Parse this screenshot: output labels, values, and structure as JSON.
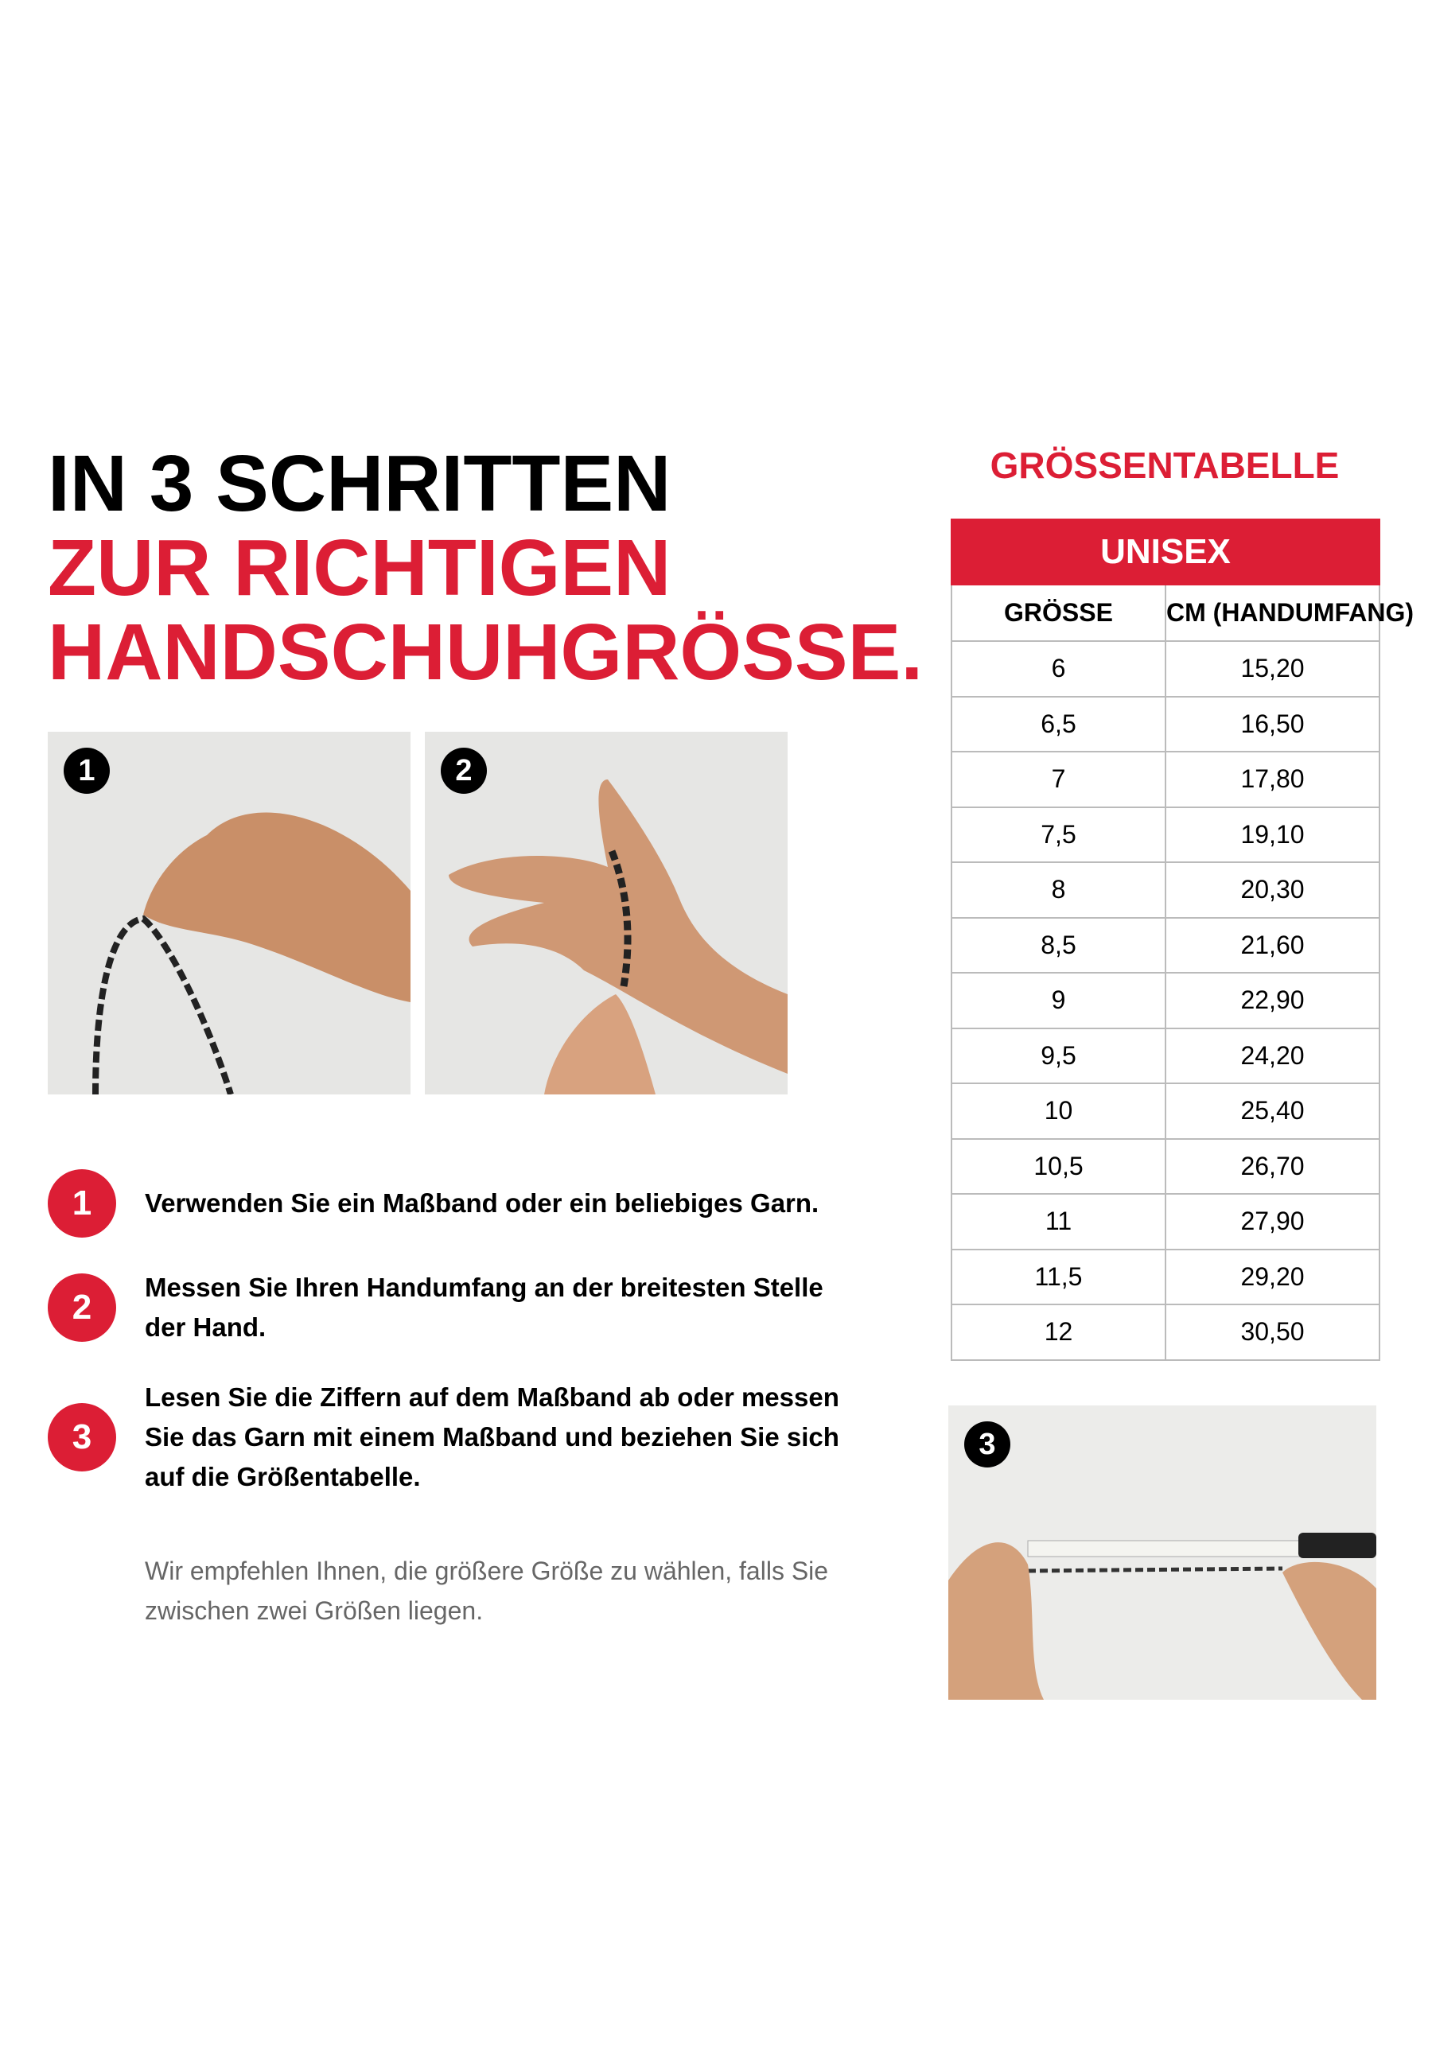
{
  "heading": {
    "line1": "IN 3 SCHRITTEN",
    "line2": "ZUR RICHTIGEN",
    "line3": "HANDSCHUHGRÖSSE."
  },
  "photos": [
    {
      "badge": "1"
    },
    {
      "badge": "2"
    },
    {
      "badge": "3"
    }
  ],
  "steps": [
    {
      "num": "1",
      "text": "Verwenden Sie ein Maßband oder ein beliebiges Garn."
    },
    {
      "num": "2",
      "text": "Messen Sie Ihren Handumfang an der breitesten Stelle der Hand."
    },
    {
      "num": "3",
      "text": "Lesen Sie die Ziffern auf dem Maßband ab oder messen Sie das Garn mit einem Maßband und beziehen Sie sich auf die Größentabelle."
    }
  ],
  "note": "Wir empfehlen Ihnen, die größere Größe zu wählen, falls Sie zwischen zwei Größen liegen.",
  "size_table": {
    "title": "GRÖSSENTABELLE",
    "group": "UNISEX",
    "headers": [
      "GRÖSSE",
      "CM (HANDUMFANG)"
    ],
    "rows": [
      [
        "6",
        "15,20"
      ],
      [
        "6,5",
        "16,50"
      ],
      [
        "7",
        "17,80"
      ],
      [
        "7,5",
        "19,10"
      ],
      [
        "8",
        "20,30"
      ],
      [
        "8,5",
        "21,60"
      ],
      [
        "9",
        "22,90"
      ],
      [
        "9,5",
        "24,20"
      ],
      [
        "10",
        "25,40"
      ],
      [
        "10,5",
        "26,70"
      ],
      [
        "11",
        "27,90"
      ],
      [
        "11,5",
        "29,20"
      ],
      [
        "12",
        "30,50"
      ]
    ]
  },
  "colors": {
    "accent": "#dc1e35",
    "text": "#000000",
    "muted": "#666666"
  }
}
